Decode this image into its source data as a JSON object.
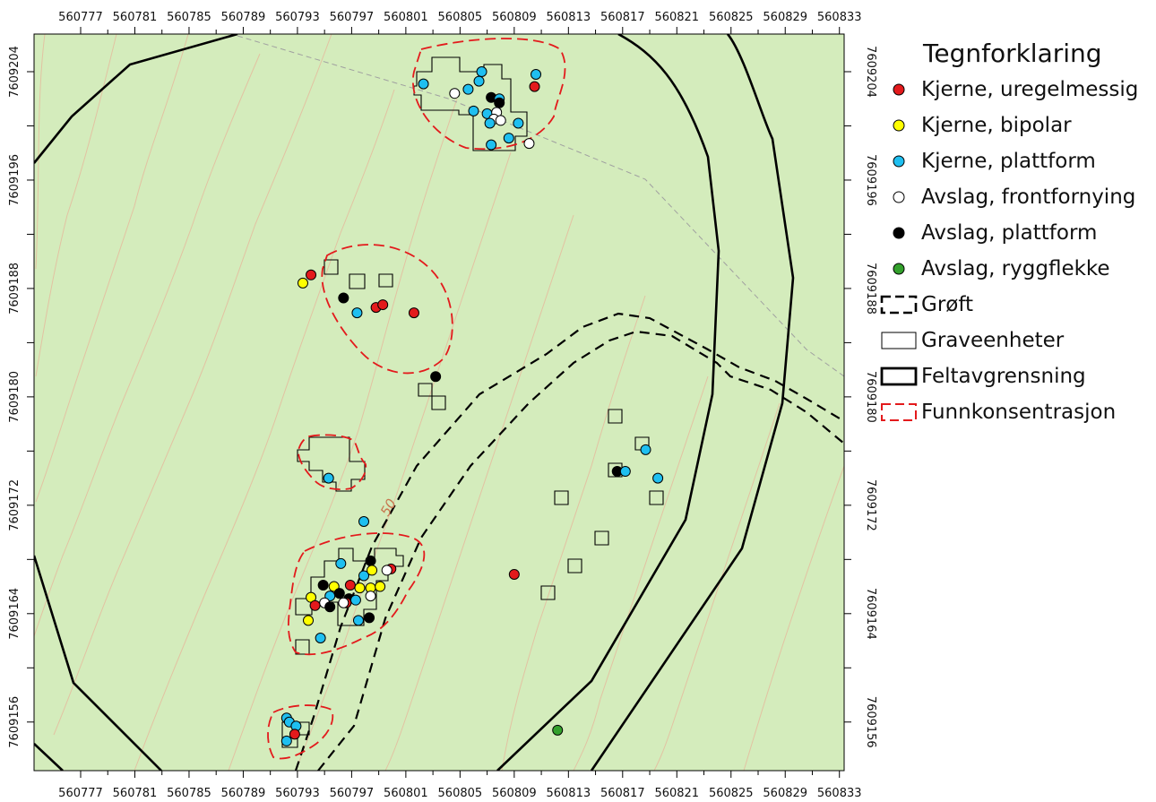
{
  "map": {
    "background_color": "#d4ecbc",
    "x_ticks": [
      "560777",
      "560781",
      "560785",
      "560789",
      "560793",
      "560797",
      "560801",
      "560805",
      "560809",
      "560813",
      "560817",
      "560821",
      "560825",
      "560829",
      "560833"
    ],
    "y_ticks": [
      "7609204",
      "7609196",
      "7609188",
      "7609180",
      "7609172",
      "7609164",
      "7609156"
    ],
    "contour_label": "50"
  },
  "legend": {
    "title": "Tegnforklaring",
    "items": [
      {
        "label": "Kjerne, uregelmessig",
        "symbol": "dot",
        "color": "#e31a1c"
      },
      {
        "label": "Kjerne, bipolar",
        "symbol": "dot",
        "color": "#ffff00"
      },
      {
        "label": "Kjerne, plattform",
        "symbol": "dot",
        "color": "#1fbff0"
      },
      {
        "label": "Avslag, frontfornying",
        "symbol": "dot",
        "color": "#ffffff"
      },
      {
        "label": "Avslag, plattform",
        "symbol": "dot",
        "color": "#000000"
      },
      {
        "label": "Avslag, ryggflekke",
        "symbol": "dot",
        "color": "#33a02c"
      },
      {
        "label": "Grøft",
        "symbol": "dashed-black-box",
        "color": "#000000"
      },
      {
        "label": "Graveenheter",
        "symbol": "thin-box",
        "color": "#000000"
      },
      {
        "label": "Feltavgrensning",
        "symbol": "thick-box",
        "color": "#000000"
      },
      {
        "label": "Funnkonsentrasjon",
        "symbol": "dashed-red-box",
        "color": "#e31a1c"
      }
    ]
  },
  "finds": [
    {
      "type": "Kjerne, plattform",
      "x": 560802.3,
      "y": 7609203.1
    },
    {
      "type": "Kjerne, plattform",
      "x": 560806.6,
      "y": 7609204.0
    },
    {
      "type": "Kjerne, plattform",
      "x": 560806.4,
      "y": 7609203.3
    },
    {
      "type": "Kjerne, plattform",
      "x": 560805.6,
      "y": 7609202.7
    },
    {
      "type": "Avslag, frontfornying",
      "x": 560804.6,
      "y": 7609202.4
    },
    {
      "type": "Avslag, plattform",
      "x": 560807.3,
      "y": 7609202.1
    },
    {
      "type": "Kjerne, plattform",
      "x": 560807.9,
      "y": 7609202.0
    },
    {
      "type": "Avslag, plattform",
      "x": 560807.9,
      "y": 7609201.7
    },
    {
      "type": "Kjerne, plattform",
      "x": 560806.0,
      "y": 7609201.1
    },
    {
      "type": "Kjerne, plattform",
      "x": 560807.0,
      "y": 7609200.9
    },
    {
      "type": "Avslag, frontfornying",
      "x": 560807.7,
      "y": 7609201.0
    },
    {
      "type": "Avslag, frontfornying",
      "x": 560807.5,
      "y": 7609200.5
    },
    {
      "type": "Avslag, frontfornying",
      "x": 560808.0,
      "y": 7609200.4
    },
    {
      "type": "Kjerne, plattform",
      "x": 560807.2,
      "y": 7609200.2
    },
    {
      "type": "Kjerne, plattform",
      "x": 560809.3,
      "y": 7609200.2
    },
    {
      "type": "Kjerne, plattform",
      "x": 560808.6,
      "y": 7609199.1
    },
    {
      "type": "Kjerne, plattform",
      "x": 560807.3,
      "y": 7609198.6
    },
    {
      "type": "Avslag, frontfornying",
      "x": 560810.1,
      "y": 7609198.7
    },
    {
      "type": "Kjerne, plattform",
      "x": 560810.6,
      "y": 7609203.8
    },
    {
      "type": "Kjerne, uregelmessig",
      "x": 560810.5,
      "y": 7609202.9
    },
    {
      "type": "Kjerne, uregelmessig",
      "x": 560794.0,
      "y": 7609189.0
    },
    {
      "type": "Kjerne, bipolar",
      "x": 560793.4,
      "y": 7609188.4
    },
    {
      "type": "Avslag, plattform",
      "x": 560796.4,
      "y": 7609187.3
    },
    {
      "type": "Kjerne, plattform",
      "x": 560797.4,
      "y": 7609186.2
    },
    {
      "type": "Kjerne, uregelmessig",
      "x": 560798.8,
      "y": 7609186.6
    },
    {
      "type": "Kjerne, uregelmessig",
      "x": 560799.3,
      "y": 7609186.8
    },
    {
      "type": "Kjerne, uregelmessig",
      "x": 560801.6,
      "y": 7609186.2
    },
    {
      "type": "Avslag, plattform",
      "x": 560803.2,
      "y": 7609181.5
    },
    {
      "type": "Kjerne, plattform",
      "x": 560795.3,
      "y": 7609174.0
    },
    {
      "type": "Kjerne, plattform",
      "x": 560797.9,
      "y": 7609170.8
    },
    {
      "type": "Kjerne, plattform",
      "x": 560796.2,
      "y": 7609167.7
    },
    {
      "type": "Avslag, plattform",
      "x": 560798.4,
      "y": 7609167.9
    },
    {
      "type": "Kjerne, uregelmessig",
      "x": 560799.9,
      "y": 7609167.3
    },
    {
      "type": "Avslag, frontfornying",
      "x": 560799.6,
      "y": 7609167.2
    },
    {
      "type": "Kjerne, plattform",
      "x": 560797.9,
      "y": 7609166.8
    },
    {
      "type": "Kjerne, bipolar",
      "x": 560798.5,
      "y": 7609167.2
    },
    {
      "type": "Avslag, plattform",
      "x": 560794.9,
      "y": 7609166.1
    },
    {
      "type": "Kjerne, bipolar",
      "x": 560795.7,
      "y": 7609166.0
    },
    {
      "type": "Kjerne, uregelmessig",
      "x": 560796.9,
      "y": 7609166.1
    },
    {
      "type": "Kjerne, bipolar",
      "x": 560797.6,
      "y": 7609165.9
    },
    {
      "type": "Kjerne, bipolar",
      "x": 560798.4,
      "y": 7609165.9
    },
    {
      "type": "Kjerne, bipolar",
      "x": 560799.1,
      "y": 7609166.0
    },
    {
      "type": "Avslag, frontfornying",
      "x": 560798.4,
      "y": 7609165.3
    },
    {
      "type": "Avslag, plattform",
      "x": 560796.1,
      "y": 7609165.5
    },
    {
      "type": "Kjerne, plattform",
      "x": 560795.4,
      "y": 7609165.3
    },
    {
      "type": "Kjerne, bipolar",
      "x": 560794.0,
      "y": 7609165.2
    },
    {
      "type": "Avslag, plattform",
      "x": 560796.8,
      "y": 7609165.1
    },
    {
      "type": "Kjerne, uregelmessig",
      "x": 560796.6,
      "y": 7609164.8
    },
    {
      "type": "Avslag, frontfornying",
      "x": 560795.0,
      "y": 7609164.8
    },
    {
      "type": "Kjerne, plattform",
      "x": 560797.3,
      "y": 7609165.0
    },
    {
      "type": "Kjerne, uregelmessig",
      "x": 560794.3,
      "y": 7609164.6
    },
    {
      "type": "Avslag, plattform",
      "x": 560795.4,
      "y": 7609164.5
    },
    {
      "type": "Avslag, frontfornying",
      "x": 560796.4,
      "y": 7609164.8
    },
    {
      "type": "Kjerne, bipolar",
      "x": 560793.8,
      "y": 7609163.5
    },
    {
      "type": "Kjerne, plattform",
      "x": 560797.5,
      "y": 7609163.5
    },
    {
      "type": "Avslag, plattform",
      "x": 560798.3,
      "y": 7609163.7
    },
    {
      "type": "Kjerne, plattform",
      "x": 560794.7,
      "y": 7609162.2
    },
    {
      "type": "Kjerne, plattform",
      "x": 560792.2,
      "y": 7609156.3
    },
    {
      "type": "Kjerne, plattform",
      "x": 560792.4,
      "y": 7609156.0
    },
    {
      "type": "Kjerne, plattform",
      "x": 560792.9,
      "y": 7609155.7
    },
    {
      "type": "Kjerne, uregelmessig",
      "x": 560792.8,
      "y": 7609155.1
    },
    {
      "type": "Kjerne, plattform",
      "x": 560792.2,
      "y": 7609154.6
    },
    {
      "type": "Kjerne, uregelmessig",
      "x": 560809.0,
      "y": 7609166.9
    },
    {
      "type": "Avslag, plattform",
      "x": 560816.6,
      "y": 7609174.5
    },
    {
      "type": "Kjerne, plattform",
      "x": 560817.2,
      "y": 7609174.5
    },
    {
      "type": "Kjerne, plattform",
      "x": 560818.7,
      "y": 7609176.1
    },
    {
      "type": "Kjerne, plattform",
      "x": 560819.6,
      "y": 7609174.0
    },
    {
      "type": "Avslag, ryggflekke",
      "x": 560812.2,
      "y": 7609155.4
    }
  ]
}
